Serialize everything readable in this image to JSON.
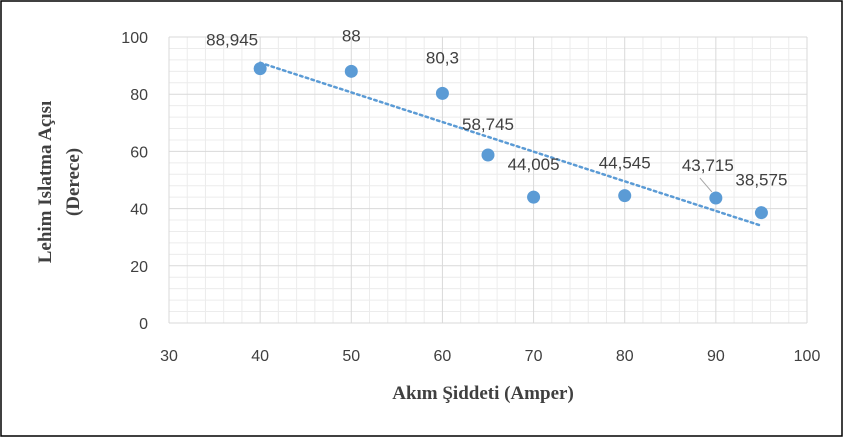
{
  "chart_data": {
    "type": "scatter",
    "title": "",
    "xlabel": "Akım Şiddeti (Amper)",
    "ylabel_line1": "Lehim Islatma Açısı",
    "ylabel_line2": "(Derece)",
    "xlim": [
      30,
      100
    ],
    "ylim": [
      0,
      100
    ],
    "x_ticks": [
      30,
      40,
      50,
      60,
      70,
      80,
      90,
      100
    ],
    "y_ticks": [
      0,
      20,
      40,
      60,
      80,
      100
    ],
    "grid": true,
    "legend": "none",
    "points": [
      {
        "x": 40,
        "y": 88.945,
        "label": "88,945"
      },
      {
        "x": 50,
        "y": 88,
        "label": "88"
      },
      {
        "x": 60,
        "y": 80.3,
        "label": "80,3"
      },
      {
        "x": 65,
        "y": 58.745,
        "label": "58,745"
      },
      {
        "x": 70,
        "y": 44.005,
        "label": "44,005"
      },
      {
        "x": 80,
        "y": 44.545,
        "label": "44,545"
      },
      {
        "x": 90,
        "y": 43.715,
        "label": "43,715"
      },
      {
        "x": 95,
        "y": 38.575,
        "label": "38,575"
      }
    ],
    "trendline": {
      "type": "linear",
      "style": "dotted",
      "x_start": 40,
      "y_start": 91,
      "x_end": 95,
      "y_end": 34
    }
  },
  "colors": {
    "marker": "#5b9bd5",
    "trendline": "#5b9bd5",
    "grid_major": "#d9d9d9",
    "grid_minor": "#ececec",
    "text": "#404040",
    "frame": "#000000"
  }
}
